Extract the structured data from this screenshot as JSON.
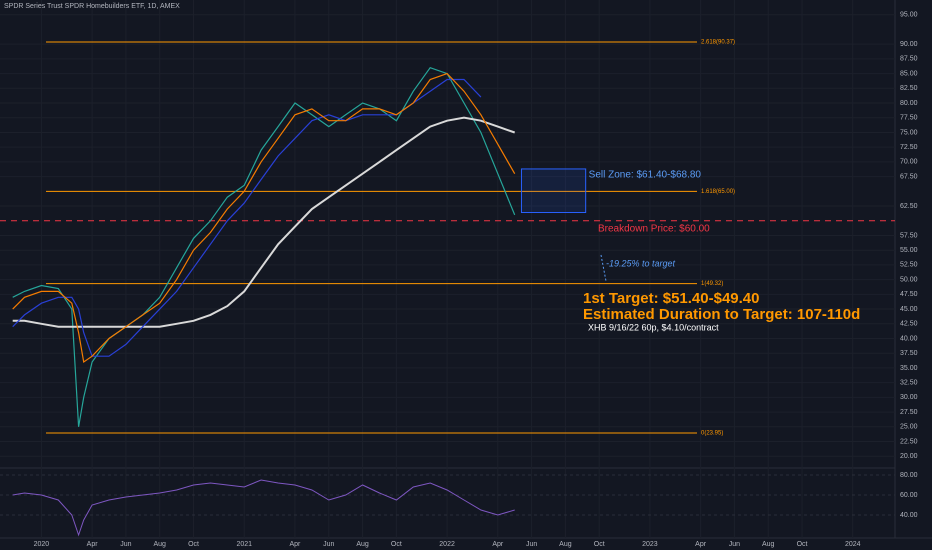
{
  "chart_data": {
    "type": "line",
    "title": "SPDR Series Trust SPDR Homebuilders ETF, 1D, AMEX",
    "x": [
      -1.7,
      -1,
      0,
      1,
      1.8,
      2.2,
      2.5,
      3,
      4,
      5,
      6,
      7,
      8,
      9,
      10,
      11,
      12,
      13,
      14,
      15,
      16,
      17,
      18,
      19,
      20,
      21,
      22,
      23,
      24,
      25,
      26,
      27,
      28
    ],
    "series": [
      {
        "color": "#26a69a",
        "values": [
          47,
          48,
          49,
          48.5,
          45,
          25,
          30,
          36,
          40,
          42,
          44,
          47,
          52,
          57,
          60,
          64,
          66,
          72,
          76,
          80,
          78,
          76,
          78,
          80,
          79,
          77,
          82,
          86,
          85,
          80,
          75,
          68,
          61
        ]
      },
      {
        "color": "#d9d9d9",
        "values": [
          43,
          43,
          42.5,
          42,
          42,
          42,
          42,
          42,
          42,
          42,
          42,
          42,
          42.5,
          43,
          44,
          45.5,
          48,
          52,
          56,
          59,
          62,
          64,
          66,
          68,
          70,
          72,
          74,
          76,
          77,
          77.5,
          77,
          76,
          75
        ]
      },
      {
        "color": "#2940d6",
        "values": [
          42,
          44,
          46,
          47,
          47,
          45,
          41,
          37,
          37,
          39,
          42,
          45,
          48,
          52,
          56,
          60,
          63,
          67,
          71,
          74,
          77,
          78,
          77,
          78,
          78,
          78,
          80,
          82,
          84,
          84,
          81,
          null,
          null
        ]
      },
      {
        "color": "#f57c00",
        "values": [
          45,
          47,
          48,
          48,
          46,
          41,
          36,
          37,
          40,
          42,
          44,
          46,
          50,
          55,
          58,
          62,
          65,
          70,
          74,
          78,
          79,
          77,
          77,
          79,
          79,
          78,
          80,
          84,
          85,
          82,
          78,
          73,
          68
        ]
      }
    ],
    "xlim": [
      -2.45,
      50.5
    ],
    "xticks": [
      {
        "value": 0,
        "label": "2020"
      },
      {
        "value": 3,
        "label": "Apr"
      },
      {
        "value": 5,
        "label": "Jun"
      },
      {
        "value": 7,
        "label": "Aug"
      },
      {
        "value": 9,
        "label": "Oct"
      },
      {
        "value": 12,
        "label": "2021"
      },
      {
        "value": 15,
        "label": "Apr"
      },
      {
        "value": 17,
        "label": "Jun"
      },
      {
        "value": 19,
        "label": "Aug"
      },
      {
        "value": 21,
        "label": "Oct"
      },
      {
        "value": 24,
        "label": "2022"
      },
      {
        "value": 27,
        "label": "Apr"
      },
      {
        "value": 29,
        "label": "Jun"
      },
      {
        "value": 31,
        "label": "Aug"
      },
      {
        "value": 33,
        "label": "Oct"
      },
      {
        "value": 36,
        "label": "2023"
      },
      {
        "value": 39,
        "label": "Apr"
      },
      {
        "value": 41,
        "label": "Jun"
      },
      {
        "value": 43,
        "label": "Aug"
      },
      {
        "value": 45,
        "label": "Oct"
      },
      {
        "value": 48,
        "label": "2024"
      }
    ],
    "ylim": [
      18,
      97.5
    ],
    "yticks": [
      {
        "value": 20,
        "label": "20.00"
      },
      {
        "value": 22.5,
        "label": "22.50"
      },
      {
        "value": 25,
        "label": "25.00"
      },
      {
        "value": 27.5,
        "label": "27.50"
      },
      {
        "value": 30,
        "label": "30.00"
      },
      {
        "value": 32.5,
        "label": "32.50"
      },
      {
        "value": 35,
        "label": "35.00"
      },
      {
        "value": 37.5,
        "label": "37.50"
      },
      {
        "value": 40,
        "label": "40.00"
      },
      {
        "value": 42.5,
        "label": "42.50"
      },
      {
        "value": 45,
        "label": "45.00"
      },
      {
        "value": 47.5,
        "label": "47.50"
      },
      {
        "value": 50,
        "label": "50.00"
      },
      {
        "value": 52.5,
        "label": "52.50"
      },
      {
        "value": 55,
        "label": "55.00"
      },
      {
        "value": 57.5,
        "label": "57.50"
      },
      {
        "value": 62.5,
        "label": "62.50"
      },
      {
        "value": 67.5,
        "label": "67.50"
      },
      {
        "value": 70,
        "label": "70.00"
      },
      {
        "value": 72.5,
        "label": "72.50"
      },
      {
        "value": 75,
        "label": "75.00"
      },
      {
        "value": 77.5,
        "label": "77.50"
      },
      {
        "value": 80,
        "label": "80.00"
      },
      {
        "value": 82.5,
        "label": "82.50"
      },
      {
        "value": 85,
        "label": "85.00"
      },
      {
        "value": 87.5,
        "label": "87.50"
      },
      {
        "value": 90,
        "label": "90.00"
      },
      {
        "value": 95,
        "label": "95.00"
      }
    ],
    "grid": true,
    "levels": [
      {
        "value": 90.37,
        "label": "2.618(90.37)"
      },
      {
        "value": 65,
        "label": "1.618(65.00)"
      },
      {
        "value": 49.32,
        "label": "1(49.32)"
      },
      {
        "value": 23.95,
        "label": "0(23.95)"
      }
    ],
    "breakdown": {
      "value": 60,
      "label": "Breakdown Price: $60.00"
    },
    "sell_zone": {
      "low": 61.4,
      "high": 68.8,
      "x": [
        28.4,
        32.2
      ],
      "label": "Sell Zone: $61.40-$68.80"
    },
    "target_note": "-19.25% to target",
    "target": "1st Target: $51.40-$49.40",
    "duration": "Estimated Duration to Target: 107-110d",
    "trade": "XHB 9/16/22 60p, $4.10/contract",
    "rsi": {
      "color": "#7e57c2",
      "values": [
        60,
        62,
        60,
        55,
        40,
        20,
        35,
        50,
        55,
        58,
        60,
        62,
        65,
        70,
        72,
        70,
        68,
        75,
        72,
        70,
        65,
        55,
        60,
        70,
        62,
        55,
        68,
        72,
        65,
        55,
        45,
        40,
        45
      ],
      "ylim": [
        17,
        87
      ],
      "yticks": [
        {
          "value": 40,
          "label": "40.00"
        },
        {
          "value": 60,
          "label": "60.00"
        },
        {
          "value": 80,
          "label": "80.00"
        }
      ]
    }
  }
}
